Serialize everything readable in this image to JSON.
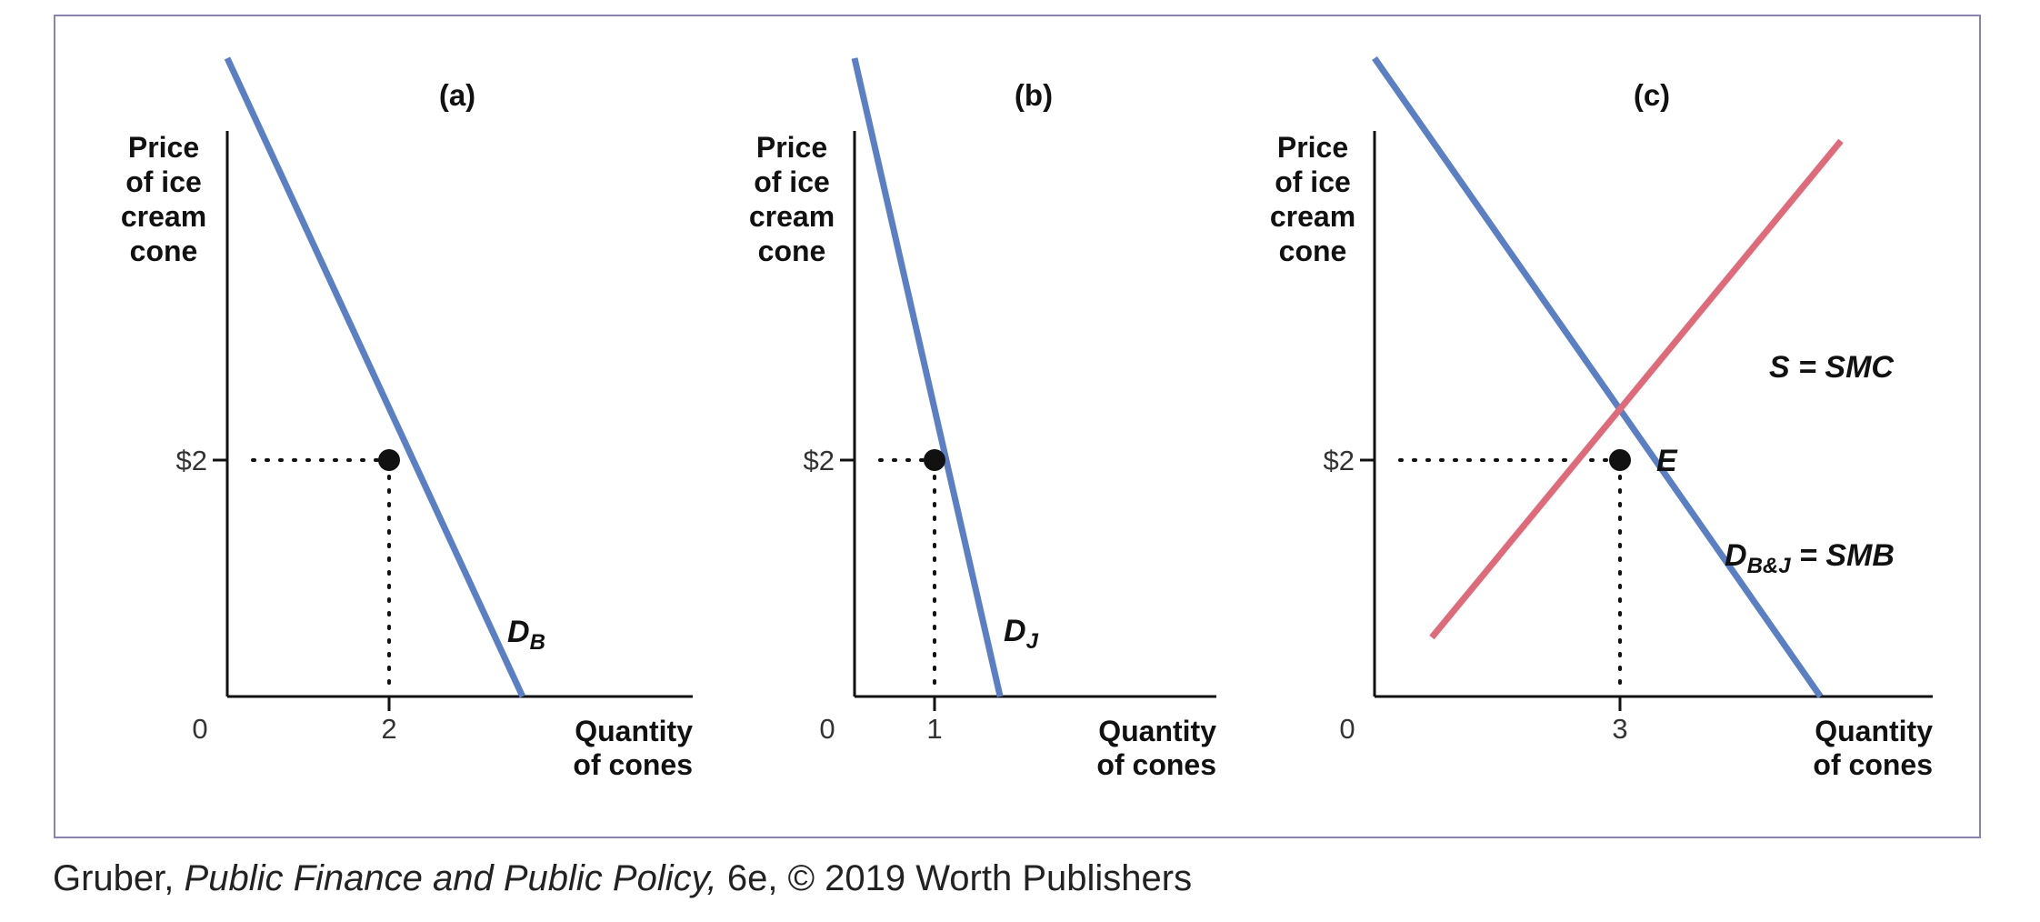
{
  "chart_data": [
    {
      "type": "line",
      "title": "(a)",
      "ylabel": [
        "Price",
        "of ice",
        "cream",
        "cone"
      ],
      "xlabel": [
        "Quantity",
        "of cones"
      ],
      "origin_label": "0",
      "y_tick_label": "$2",
      "x_tick_label": "2",
      "equilibrium": {
        "x": 2,
        "y": 2
      },
      "xlim": [
        0,
        6
      ],
      "ylim": [
        0,
        6
      ],
      "series": [
        {
          "name": "D_B",
          "label_main": "D",
          "label_sub": "B",
          "color": "#5b7fc4",
          "points": [
            [
              0,
              5.4
            ],
            [
              3.65,
              0
            ]
          ]
        }
      ]
    },
    {
      "type": "line",
      "title": "(b)",
      "ylabel": [
        "Price",
        "of ice",
        "cream",
        "cone"
      ],
      "xlabel": [
        "Quantity",
        "of cones"
      ],
      "origin_label": "0",
      "y_tick_label": "$2",
      "x_tick_label": "1",
      "equilibrium": {
        "x": 1,
        "y": 2
      },
      "xlim": [
        0,
        4.5
      ],
      "ylim": [
        0,
        6
      ],
      "series": [
        {
          "name": "D_J",
          "label_main": "D",
          "label_sub": "J",
          "color": "#5b7fc4",
          "points": [
            [
              0,
              5.4
            ],
            [
              1.82,
              0
            ]
          ]
        }
      ]
    },
    {
      "type": "line",
      "title": "(c)",
      "ylabel": [
        "Price",
        "of ice",
        "cream",
        "cone"
      ],
      "xlabel": [
        "Quantity",
        "of cones"
      ],
      "origin_label": "0",
      "y_tick_label": "$2",
      "x_tick_label": "3",
      "equilibrium": {
        "x": 3,
        "y": 2,
        "label": "E"
      },
      "xlim": [
        0,
        6.8
      ],
      "ylim": [
        0,
        6
      ],
      "series": [
        {
          "name": "D_B&J = SMB",
          "label_main": "D",
          "label_sub": "B&J",
          "label_tail": " = SMB",
          "color": "#5b7fc4",
          "points": [
            [
              0,
              5.4
            ],
            [
              5.45,
              0
            ]
          ]
        },
        {
          "name": "S = SMC",
          "label_main": "S = SMC",
          "color": "#e06a7a",
          "points": [
            [
              0.7,
              0.5
            ],
            [
              5.7,
              4.7
            ]
          ]
        }
      ]
    }
  ],
  "credit": {
    "prefix": "Gruber, ",
    "book": "Public Finance and Public Policy,",
    "suffix": " 6e, © 2019 Worth Publishers"
  },
  "colors": {
    "frame": "#8a82b8",
    "demand": "#5b7fc4",
    "supply": "#e06a7a",
    "axis": "#111111"
  }
}
